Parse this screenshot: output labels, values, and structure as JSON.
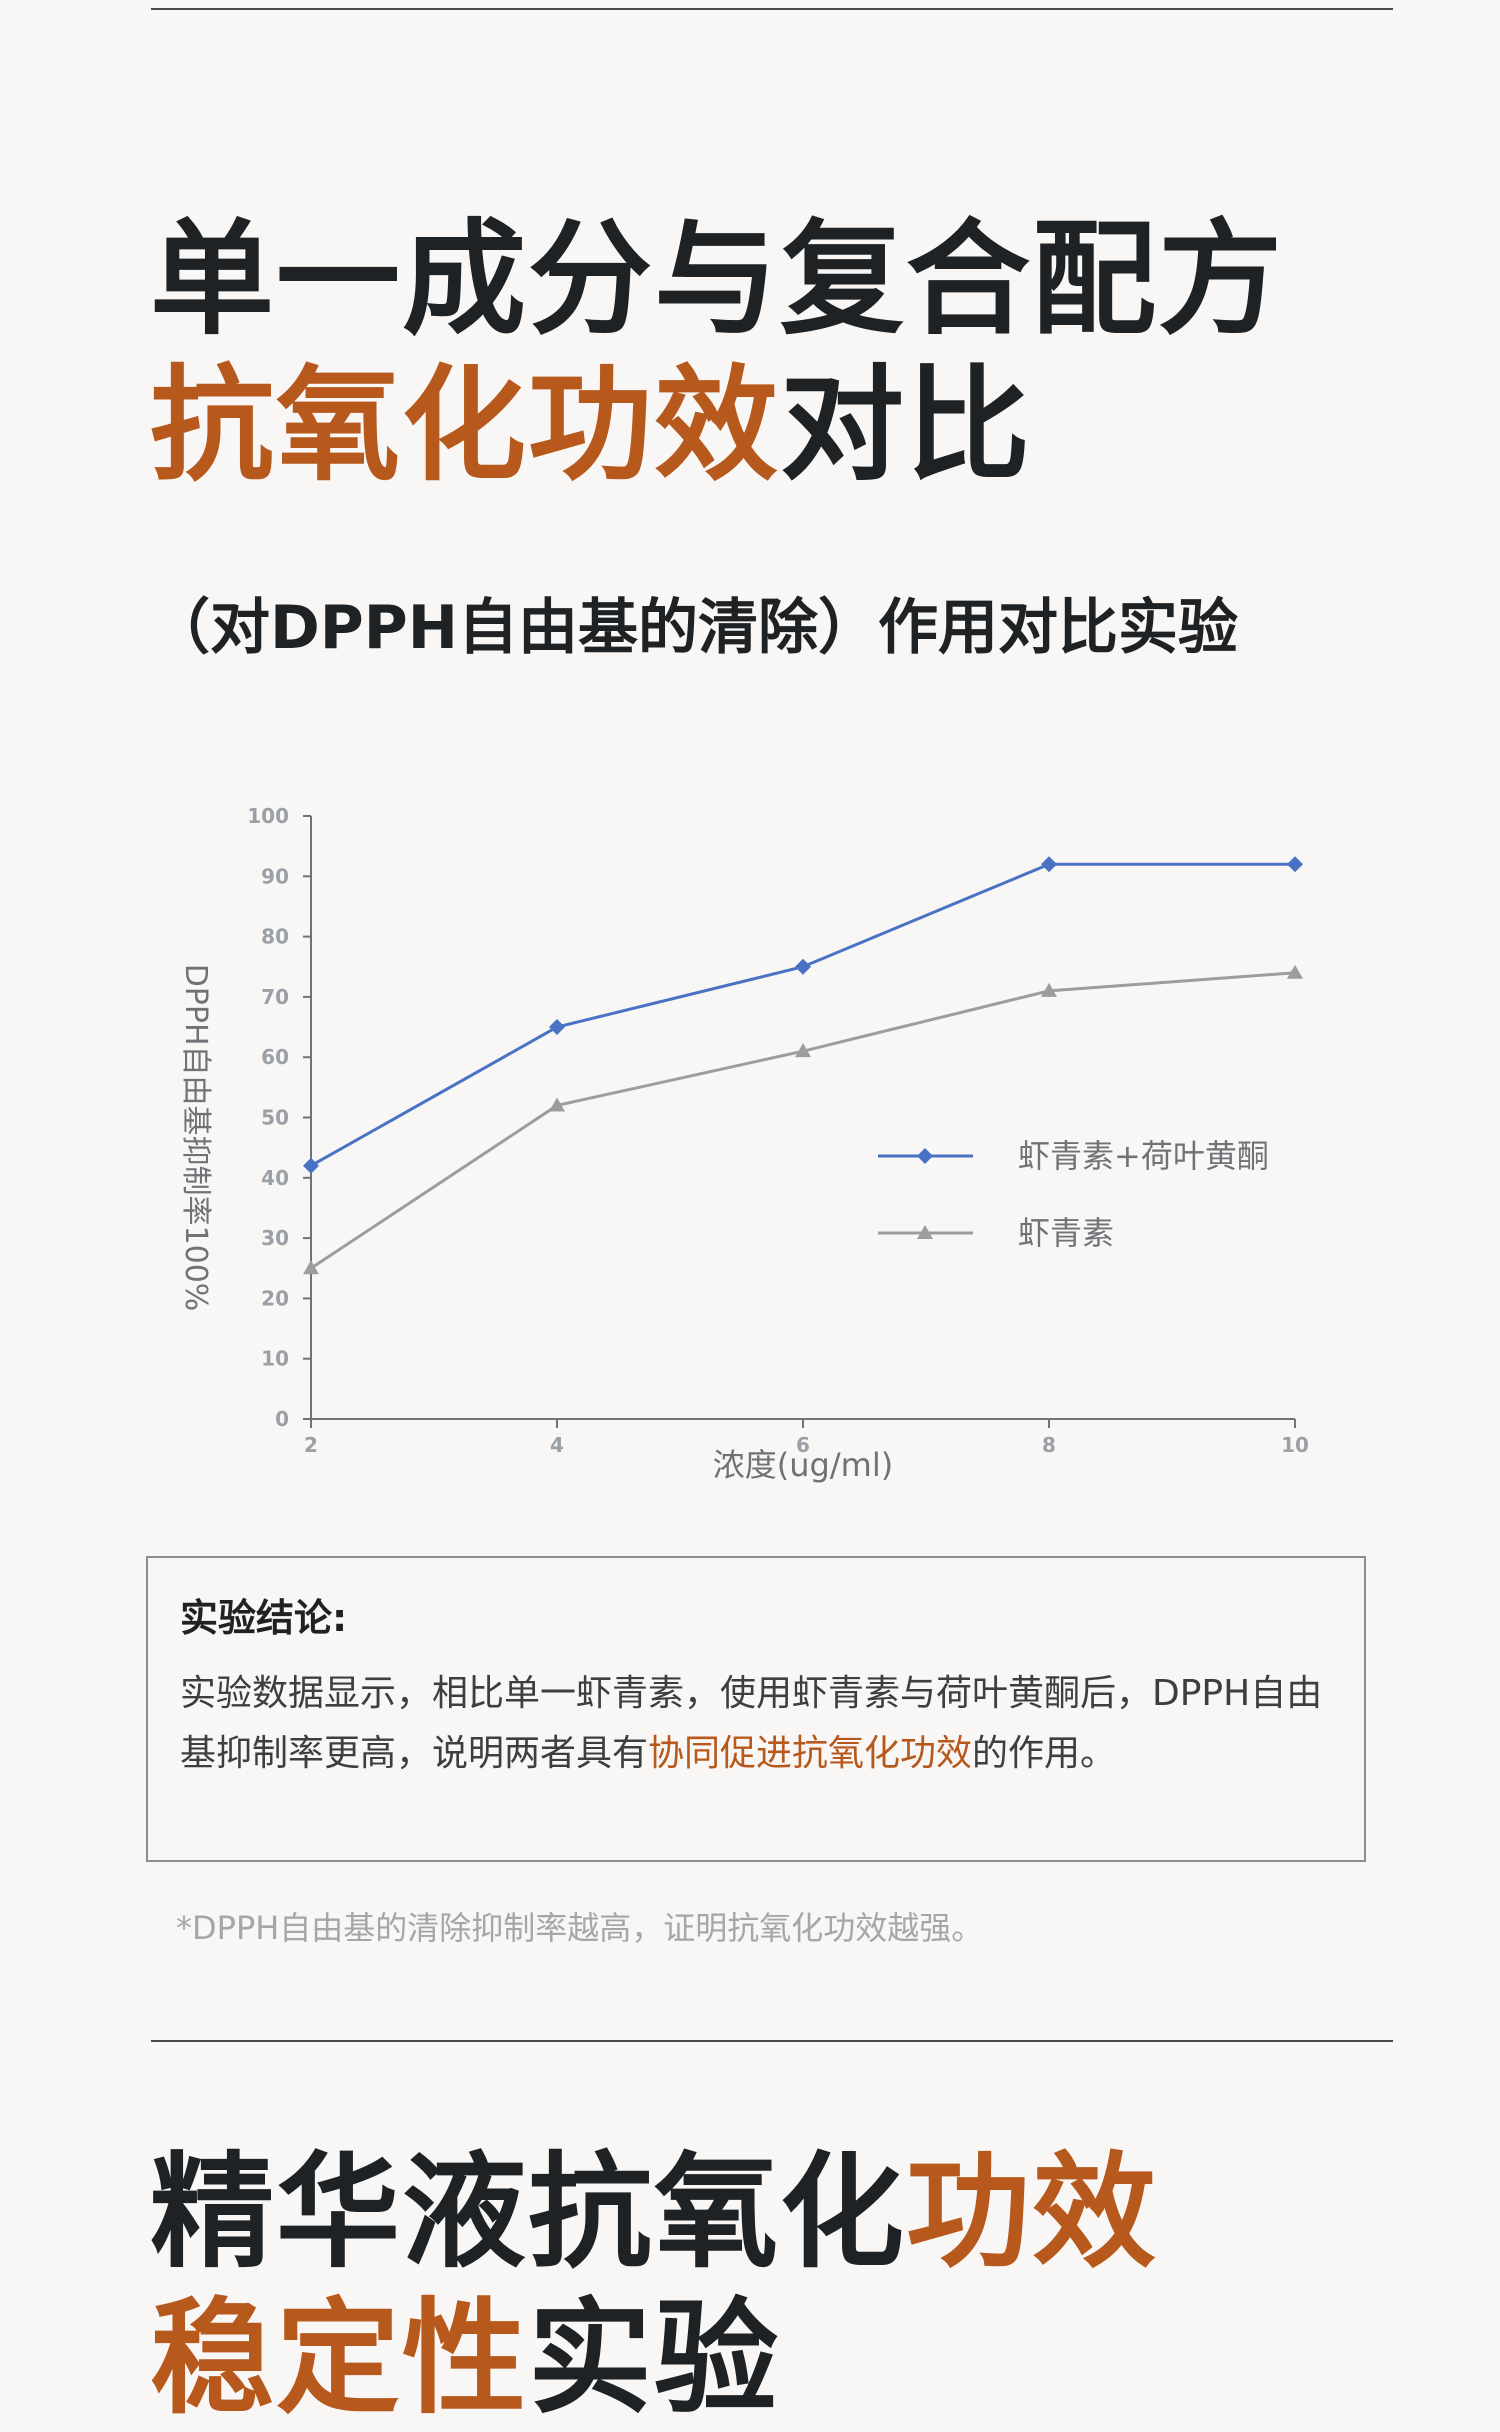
{
  "heading": {
    "line1": "单一成分与复合配方",
    "line2_accent": "抗氧化功效",
    "line2_rest": "对比"
  },
  "subtitle": "（对DPPH自由基的清除）作用对比实验",
  "chart_data": {
    "type": "line",
    "x": [
      2,
      4,
      6,
      8,
      10
    ],
    "xlabel": "浓度(ug/ml)",
    "ylabel": "DPPH自由基抑制率100%",
    "ylim": [
      0,
      100
    ],
    "yticks": [
      0,
      10,
      20,
      30,
      40,
      50,
      60,
      70,
      80,
      90,
      100
    ],
    "xticks": [
      "2",
      "4",
      "6",
      "8",
      "10"
    ],
    "grid": false,
    "legend_position": "right",
    "series": [
      {
        "name": "虾青素+荷叶黄酮",
        "values": [
          42,
          65,
          75,
          92,
          92
        ],
        "color": "#4a72c4",
        "marker": "diamond"
      },
      {
        "name": "虾青素",
        "values": [
          25,
          52,
          61,
          71,
          74
        ],
        "color": "#9d9d9d",
        "marker": "triangle"
      }
    ]
  },
  "conclusion": {
    "title": "实验结论:",
    "text1": "实验数据显示，相比单一虾青素，使用虾青素与荷叶黄酮后，DPPH自由基抑制率更高，说明两者具有",
    "highlight": "协同促进抗氧化功效",
    "text2": "的作用。"
  },
  "footnote": "*DPPH自由基的清除抑制率越高，证明抗氧化功效越强。",
  "next_heading": {
    "line1_dark": "精华液抗氧化",
    "line1_accent": "功效",
    "line2_accent": "稳定性",
    "line2_dark": "实验"
  }
}
